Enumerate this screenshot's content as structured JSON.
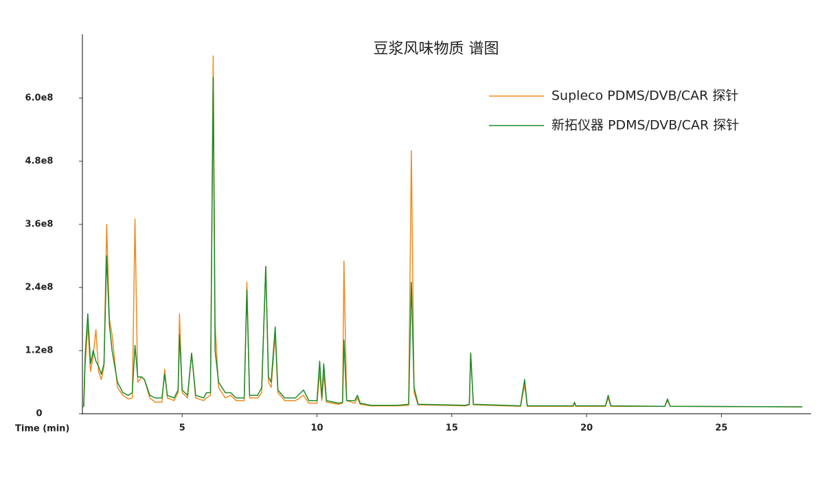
{
  "chart_data": {
    "type": "line",
    "title": "豆浆风味物质 谱图",
    "xlabel": "Time (min)",
    "x": [
      1.3,
      1.35,
      1.4,
      1.5,
      1.6,
      1.7,
      1.8,
      1.9,
      2.0,
      2.1,
      2.2,
      2.3,
      2.4,
      2.6,
      2.8,
      3.0,
      3.15,
      3.25,
      3.35,
      3.5,
      3.6,
      3.8,
      4.0,
      4.25,
      4.35,
      4.45,
      4.7,
      4.85,
      4.9,
      5.0,
      5.2,
      5.35,
      5.5,
      5.8,
      5.9,
      6.05,
      6.15,
      6.22,
      6.35,
      6.6,
      6.8,
      7.0,
      7.3,
      7.4,
      7.5,
      7.8,
      7.95,
      8.1,
      8.2,
      8.3,
      8.45,
      8.55,
      8.8,
      9.2,
      9.5,
      9.7,
      10.0,
      10.1,
      10.18,
      10.25,
      10.35,
      10.8,
      10.95,
      11.0,
      11.1,
      11.4,
      11.5,
      11.6,
      12.0,
      13.0,
      13.4,
      13.5,
      13.6,
      13.75,
      15.5,
      15.65,
      15.7,
      15.8,
      17.55,
      17.7,
      17.8,
      19.5,
      19.55,
      19.6,
      20.7,
      20.8,
      20.9,
      22.9,
      23.0,
      23.1,
      28.0
    ],
    "series": [
      {
        "name": "Supleco  PDMS/DVB/CAR 探针",
        "color": "#f08a1c",
        "values": [
          12000000.0,
          15000000.0,
          90000000.0,
          170000000.0,
          80000000.0,
          110000000.0,
          160000000.0,
          80000000.0,
          65000000.0,
          90000000.0,
          360000000.0,
          180000000.0,
          150000000.0,
          50000000.0,
          35000000.0,
          28000000.0,
          30000000.0,
          370000000.0,
          60000000.0,
          70000000.0,
          65000000.0,
          30000000.0,
          22000000.0,
          22000000.0,
          85000000.0,
          30000000.0,
          25000000.0,
          40000000.0,
          190000000.0,
          40000000.0,
          30000000.0,
          115000000.0,
          30000000.0,
          25000000.0,
          30000000.0,
          35000000.0,
          680000000.0,
          170000000.0,
          50000000.0,
          30000000.0,
          35000000.0,
          25000000.0,
          25000000.0,
          250000000.0,
          30000000.0,
          30000000.0,
          40000000.0,
          280000000.0,
          60000000.0,
          50000000.0,
          150000000.0,
          40000000.0,
          25000000.0,
          25000000.0,
          35000000.0,
          20000000.0,
          20000000.0,
          80000000.0,
          25000000.0,
          75000000.0,
          22000000.0,
          18000000.0,
          20000000.0,
          290000000.0,
          25000000.0,
          20000000.0,
          30000000.0,
          18000000.0,
          15000000.0,
          15000000.0,
          16000000.0,
          500000000.0,
          40000000.0,
          17000000.0,
          15000000.0,
          17000000.0,
          115000000.0,
          17000000.0,
          14000000.0,
          55000000.0,
          14000000.0,
          14000000.0,
          20000000.0,
          14000000.0,
          14000000.0,
          30000000.0,
          14000000.0,
          14000000.0,
          25000000.0,
          14000000.0,
          13000000.0
        ]
      },
      {
        "name": "新拓仪器  PDMS/DVB/CAR 探针",
        "color": "#1a8a2a",
        "values": [
          12000000.0,
          15000000.0,
          110000000.0,
          190000000.0,
          95000000.0,
          120000000.0,
          100000000.0,
          90000000.0,
          75000000.0,
          95000000.0,
          300000000.0,
          170000000.0,
          120000000.0,
          60000000.0,
          40000000.0,
          35000000.0,
          40000000.0,
          130000000.0,
          70000000.0,
          70000000.0,
          65000000.0,
          35000000.0,
          30000000.0,
          30000000.0,
          75000000.0,
          35000000.0,
          30000000.0,
          45000000.0,
          150000000.0,
          45000000.0,
          35000000.0,
          115000000.0,
          35000000.0,
          30000000.0,
          40000000.0,
          40000000.0,
          640000000.0,
          120000000.0,
          60000000.0,
          40000000.0,
          40000000.0,
          30000000.0,
          30000000.0,
          235000000.0,
          35000000.0,
          35000000.0,
          50000000.0,
          280000000.0,
          70000000.0,
          60000000.0,
          165000000.0,
          45000000.0,
          30000000.0,
          30000000.0,
          45000000.0,
          25000000.0,
          25000000.0,
          100000000.0,
          30000000.0,
          95000000.0,
          25000000.0,
          20000000.0,
          22000000.0,
          140000000.0,
          25000000.0,
          25000000.0,
          35000000.0,
          20000000.0,
          16000000.0,
          16000000.0,
          18000000.0,
          250000000.0,
          50000000.0,
          18000000.0,
          16000000.0,
          18000000.0,
          115000000.0,
          18000000.0,
          15000000.0,
          65000000.0,
          15000000.0,
          15000000.0,
          22000000.0,
          15000000.0,
          15000000.0,
          35000000.0,
          15000000.0,
          14000000.0,
          28000000.0,
          14000000.0,
          13000000.0
        ]
      }
    ],
    "xlim": [
      1.3,
      28.3
    ],
    "xticks": [
      5,
      10,
      15,
      20,
      25
    ],
    "ylim": [
      0,
      720000000.0
    ],
    "yticks": [
      0,
      {
        "value": 120000000.0,
        "label": "1.2e8"
      },
      {
        "value": 240000000.0,
        "label": "2.4e8"
      },
      {
        "value": 360000000.0,
        "label": "3.6e8"
      },
      {
        "value": 480000000.0,
        "label": "4.8e8"
      },
      {
        "value": 600000000.0,
        "label": "6.0e8"
      }
    ],
    "legend": "upper right"
  }
}
